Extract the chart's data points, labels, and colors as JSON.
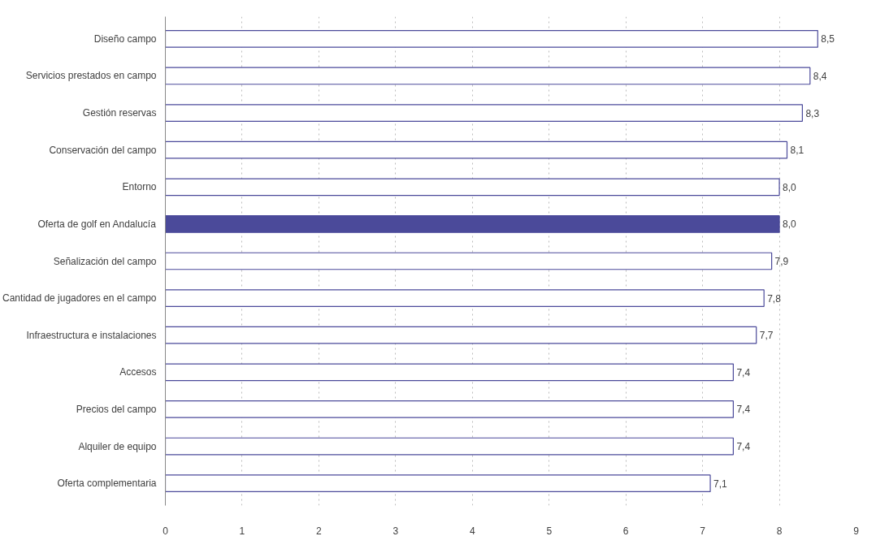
{
  "chart_data": {
    "type": "bar",
    "orientation": "horizontal",
    "categories": [
      "Diseño campo",
      "Servicios prestados en campo",
      "Gestión reservas",
      "Conservación del campo",
      "Entorno",
      "Oferta de golf en Andalucía",
      "Señalización del campo",
      "Cantidad de jugadores en el campo",
      "Infraestructura e instalaciones",
      "Accesos",
      "Precios del campo",
      "Alquiler de equipo",
      "Oferta complementaria"
    ],
    "series": [
      {
        "color": "#4b4a9a",
        "values": [
          8.5,
          8.4,
          8.3,
          8.1,
          8.0,
          8.0,
          7.9,
          7.8,
          7.7,
          7.4,
          7.4,
          7.4,
          7.1
        ],
        "colors": [
          "#ffffff",
          "#ffffff",
          "#ffffff",
          "#ffffff",
          "#ffffff",
          "#4b4a9a",
          "#ffffff",
          "#ffffff",
          "#ffffff",
          "#ffffff",
          "#ffffff",
          "#ffffff",
          "#ffffff"
        ],
        "value_labels": [
          "8,5",
          "8,4",
          "8,3",
          "8,1",
          "8,0",
          "8,0",
          "7,9",
          "7,8",
          "7,7",
          "7,4",
          "7,4",
          "7,4",
          "7,1"
        ]
      }
    ],
    "xlim": [
      0,
      9
    ],
    "xticks": [
      0,
      1,
      2,
      3,
      4,
      5,
      6,
      7,
      8,
      9
    ],
    "grid": "x"
  }
}
